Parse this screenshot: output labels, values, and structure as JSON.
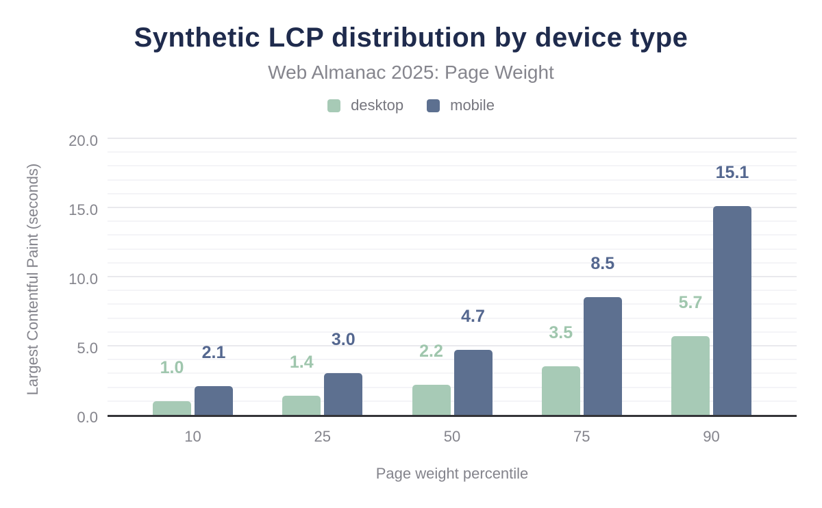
{
  "chart_data": {
    "type": "bar",
    "title": "Synthetic LCP distribution by device type",
    "subtitle": "Web Almanac 2025: Page Weight",
    "xlabel": "Page weight percentile",
    "ylabel": "Largest Contentful Paint (seconds)",
    "categories": [
      "10",
      "25",
      "50",
      "75",
      "90"
    ],
    "series": [
      {
        "name": "desktop",
        "color": "#a7cab6",
        "label_color": "#9fc6ad",
        "values": [
          1.0,
          1.4,
          2.2,
          3.5,
          5.7
        ],
        "labels": [
          "1.0",
          "1.4",
          "2.2",
          "3.5",
          "5.7"
        ]
      },
      {
        "name": "mobile",
        "color": "#5d7090",
        "label_color": "#54678f",
        "values": [
          2.1,
          3.0,
          4.7,
          8.5,
          15.1
        ],
        "labels": [
          "2.1",
          "3.0",
          "4.7",
          "8.5",
          "15.1"
        ]
      }
    ],
    "ylim": [
      0,
      20
    ],
    "yticks": [
      0,
      5,
      10,
      15,
      20
    ],
    "ytick_labels": [
      "0.0",
      "5.0",
      "10.0",
      "15.0",
      "20.0"
    ],
    "minor_grid_step": 1,
    "major_grid_step": 5,
    "grid": true,
    "legend_position": "top",
    "colors": {
      "title_text": "#1f2b4d",
      "subtitle_text": "#85858d",
      "tick_text": "#84848c",
      "axis_line": "#343438",
      "background": "#ffffff"
    }
  }
}
